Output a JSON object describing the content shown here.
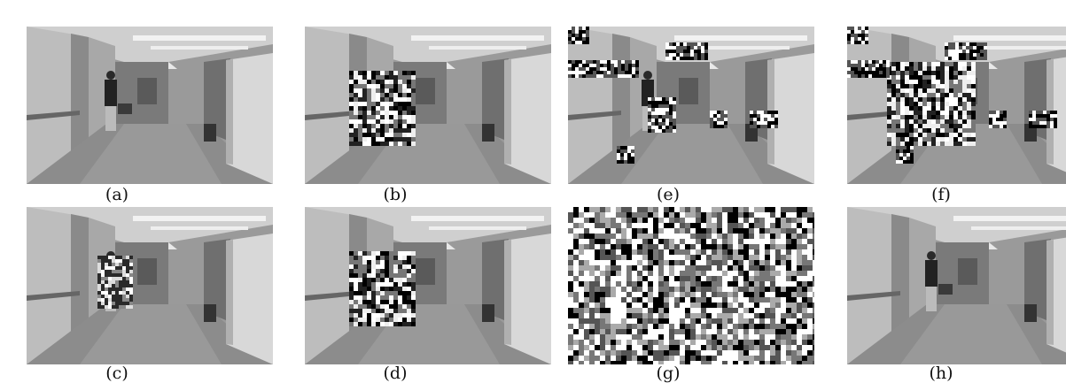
{
  "figure": {
    "panels": [
      {
        "id": "a",
        "caption": "(a)",
        "overlay": "none"
      },
      {
        "id": "b",
        "caption": "(b)",
        "overlay": "block-on-person"
      },
      {
        "id": "e",
        "caption": "(e)",
        "overlay": "scattered-patches"
      },
      {
        "id": "f",
        "caption": "(f)",
        "overlay": "block-and-scattered"
      },
      {
        "id": "c",
        "caption": "(c)",
        "overlay": "light-on-person"
      },
      {
        "id": "d",
        "caption": "(d)",
        "overlay": "block-on-person"
      },
      {
        "id": "g",
        "caption": "(g)",
        "overlay": "full-noise"
      },
      {
        "id": "h",
        "caption": "(h)",
        "overlay": "none"
      }
    ]
  }
}
